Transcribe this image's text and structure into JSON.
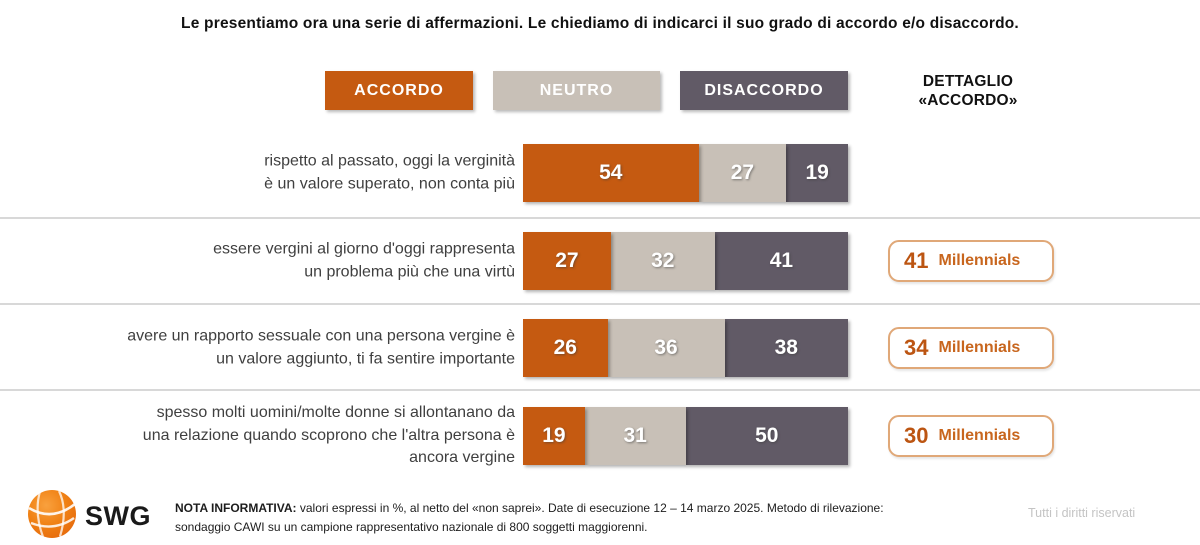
{
  "title": "Le presentiamo ora una serie di affermazioni. Le chiediamo di indicarci il suo grado di accordo e/o disaccordo.",
  "legend": {
    "items": [
      {
        "label": "ACCORDO",
        "color": "#C55A11"
      },
      {
        "label": "NEUTRO",
        "color": "#C8C0B7"
      },
      {
        "label": "DISACCORDO",
        "color": "#615A66"
      }
    ],
    "detail_header": "DETTAGLIO\n«ACCORDO»"
  },
  "colors": {
    "accordo": "#C55A11",
    "neutro": "#C8C0B7",
    "disaccordo": "#615A66",
    "detail_border": "#E0A878",
    "detail_number": "#BC5512",
    "detail_label": "#C8661E",
    "separator": "#D8D8D8",
    "rights_text": "#C4C4C4"
  },
  "rows": [
    {
      "lines": [
        "rispetto al passato, oggi la verginità",
        "è un valore superato, non conta più"
      ],
      "values": {
        "accordo": 54,
        "neutro": 27,
        "disaccordo": 19
      },
      "detail": null
    },
    {
      "lines": [
        "essere vergini al giorno d'oggi rappresenta",
        "un problema più che una virtù"
      ],
      "values": {
        "accordo": 27,
        "neutro": 32,
        "disaccordo": 41
      },
      "detail": {
        "value": "41",
        "label": "Millennials"
      }
    },
    {
      "lines": [
        "avere un rapporto sessuale con una persona vergine è",
        "un valore aggiunto, ti fa sentire importante"
      ],
      "values": {
        "accordo": 26,
        "neutro": 36,
        "disaccordo": 38
      },
      "detail": {
        "value": "34",
        "label": "Millennials"
      }
    },
    {
      "lines": [
        "spesso molti uomini/molte donne si allontanano da",
        "una relazione quando scoprono che l'altra persona è",
        "ancora vergine"
      ],
      "values": {
        "accordo": 19,
        "neutro": 31,
        "disaccordo": 50
      },
      "detail": {
        "value": "30",
        "label": "Millennials"
      }
    }
  ],
  "chart_data": {
    "type": "bar",
    "orientation": "horizontal",
    "stacked": true,
    "title": "Le presentiamo ora una serie di affermazioni. Le chiediamo di indicarci il suo grado di accordo e/o disaccordo.",
    "categories": [
      "rispetto al passato, oggi la verginità è un valore superato, non conta più",
      "essere vergini al giorno d'oggi rappresenta un problema più che una virtù",
      "avere un rapporto sessuale con una persona vergine è un valore aggiunto, ti fa sentire importante",
      "spesso molti uomini/molte donne si allontanano da una relazione quando scoprono che l'altra persona è ancora vergine"
    ],
    "series": [
      {
        "name": "ACCORDO",
        "color": "#C55A11",
        "values": [
          54,
          27,
          26,
          19
        ]
      },
      {
        "name": "NEUTRO",
        "color": "#C8C0B7",
        "values": [
          27,
          32,
          36,
          31
        ]
      },
      {
        "name": "DISACCORDO",
        "color": "#615A66",
        "values": [
          19,
          41,
          38,
          50
        ]
      }
    ],
    "xlim": [
      0,
      100
    ],
    "value_unit": "%",
    "data_labels": true,
    "legend_position": "top",
    "detail_accordo": {
      "label": "Millennials",
      "values": [
        null,
        41,
        34,
        30
      ]
    }
  },
  "footer": {
    "logo_text": "SWG",
    "note_bold": "NOTA INFORMATIVA:",
    "note_rest": " valori espressi in %, al netto del «non saprei». Date di esecuzione 12 – 14 marzo 2025. Metodo di rilevazione:\nsondaggio CAWI su un campione rappresentativo nazionale di 800 soggetti maggiorenni.",
    "rights": "Tutti i diritti riservati"
  }
}
